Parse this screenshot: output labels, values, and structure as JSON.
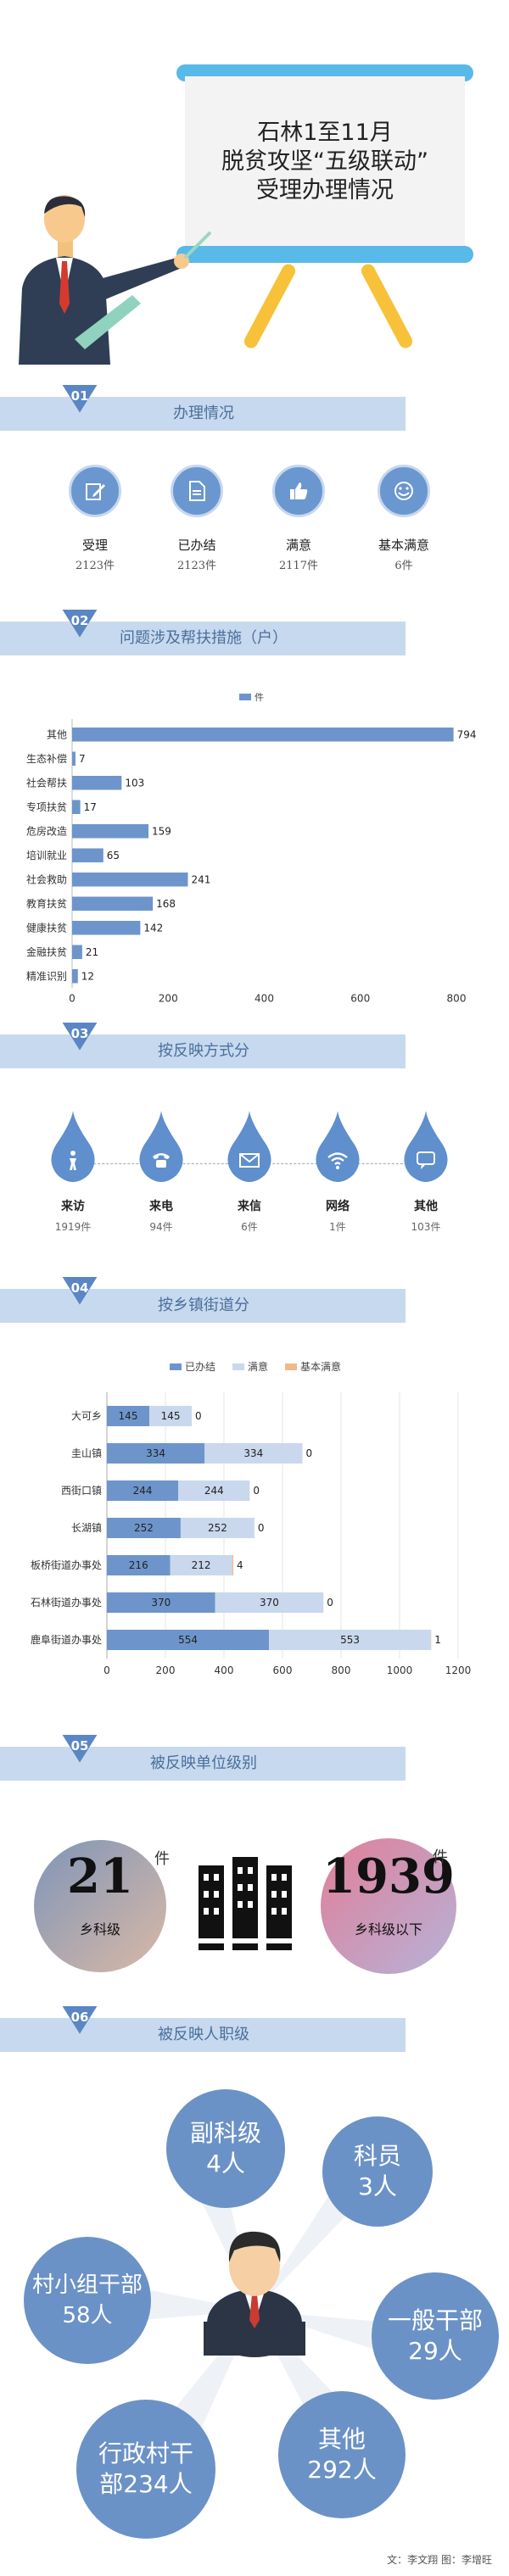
{
  "header": {
    "title_lines": [
      "石林1至11月",
      "脱贫攻坚“五级联动”",
      "受理办理情况"
    ]
  },
  "sections": [
    {
      "num": "01",
      "title": "办理情况"
    },
    {
      "num": "02",
      "title": "问题涉及帮扶措施（户）"
    },
    {
      "num": "03",
      "title": "按反映方式分"
    },
    {
      "num": "04",
      "title": "按乡镇街道分"
    },
    {
      "num": "05",
      "title": "被反映单位级别"
    },
    {
      "num": "06",
      "title": "被反映人职级"
    }
  ],
  "handling_stats": [
    {
      "label": "受理",
      "value": "2123件",
      "icon": "edit-icon"
    },
    {
      "label": "已办结",
      "value": "2123件",
      "icon": "document-icon"
    },
    {
      "label": "满意",
      "value": "2117件",
      "icon": "thumbs-up-icon"
    },
    {
      "label": "基本满意",
      "value": "6件",
      "icon": "smiley-icon"
    }
  ],
  "chart_data": [
    {
      "type": "bar",
      "orientation": "horizontal",
      "categories": [
        "其他",
        "生态补偿",
        "社会帮扶",
        "专项扶贫",
        "危房改造",
        "培训就业",
        "社会救助",
        "教育扶贫",
        "健康扶贫",
        "金融扶贫",
        "精准识别"
      ],
      "series": [
        {
          "name": "件",
          "values": [
            794,
            7,
            103,
            17,
            159,
            65,
            241,
            168,
            142,
            21,
            12
          ]
        }
      ],
      "xlim": [
        0,
        800
      ],
      "xticks": [
        0,
        200,
        400,
        600,
        800
      ],
      "legend": "top-center",
      "color": "#6d95cb"
    },
    {
      "type": "bar",
      "orientation": "horizontal",
      "stacked": true,
      "categories": [
        "大可乡",
        "圭山镇",
        "西街口镇",
        "长湖镇",
        "板桥街道办事处",
        "石林街道办事处",
        "鹿阜街道办事处"
      ],
      "series": [
        {
          "name": "已办结",
          "values": [
            145,
            334,
            244,
            252,
            216,
            370,
            554
          ],
          "color": "#6d95cb"
        },
        {
          "name": "满意",
          "values": [
            145,
            334,
            244,
            252,
            212,
            370,
            553
          ],
          "color": "#c9d8ec"
        },
        {
          "name": "基本满意",
          "values": [
            0,
            0,
            0,
            0,
            4,
            0,
            1
          ],
          "color": "#f3b98a"
        }
      ],
      "xlim": [
        0,
        1200
      ],
      "xticks": [
        0,
        200,
        400,
        600,
        800,
        1000,
        1200
      ],
      "legend": "top-center"
    }
  ],
  "report_methods": [
    {
      "label": "来访",
      "value": "1919件",
      "icon": "visitor-icon"
    },
    {
      "label": "来电",
      "value": "94件",
      "icon": "phone-icon"
    },
    {
      "label": "来信",
      "value": "6件",
      "icon": "mail-icon"
    },
    {
      "label": "网络",
      "value": "1件",
      "icon": "wifi-icon"
    },
    {
      "label": "其他",
      "value": "103件",
      "icon": "chat-icon"
    }
  ],
  "unit_level": {
    "left": {
      "number": "21",
      "unit": "件",
      "label": "乡科级"
    },
    "right": {
      "number": "1939",
      "unit": "件",
      "label": "乡科级以下"
    }
  },
  "person_rank": [
    {
      "line1": "副科级",
      "line2": "4人"
    },
    {
      "line1": "科员",
      "line2": "3人"
    },
    {
      "line1": "村小组干部",
      "line2": "58人"
    },
    {
      "line1": "一般干部",
      "line2": "29人"
    },
    {
      "line1": "行政村干",
      "line2": "部234人"
    },
    {
      "line1": "其他",
      "line2": "292人"
    }
  ],
  "credits": "文：李文翔  图：李增旺",
  "colors": {
    "accent": "#6d95cb",
    "band": "#c7d9ee",
    "easel": "#59b9e8",
    "legs": "#f7c23a"
  }
}
